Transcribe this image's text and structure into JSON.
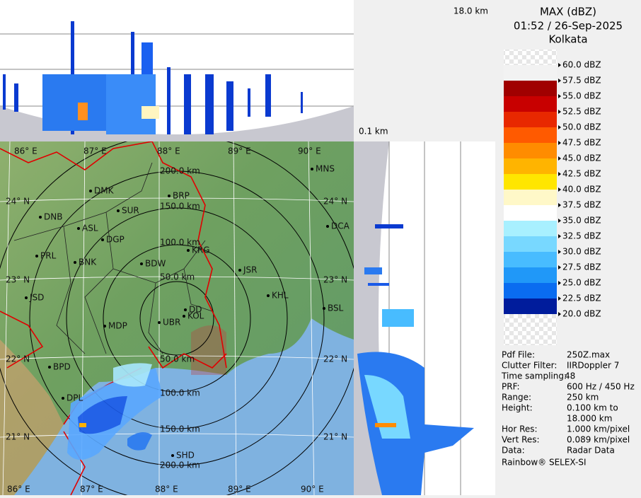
{
  "header": {
    "title": "MAX (dBZ)",
    "time": "01:52 / 26-Sep-2025",
    "station": "Kolkata"
  },
  "height_labels": {
    "top": "18.0 km",
    "bottom": "0.1 km"
  },
  "legend": {
    "entries": [
      {
        "label": "60.0 dBZ",
        "color": "#f2f2f2"
      },
      {
        "label": "57.5 dBZ",
        "color": "#a00000"
      },
      {
        "label": "55.0 dBZ",
        "color": "#c80000"
      },
      {
        "label": "52.5 dBZ",
        "color": "#e82800"
      },
      {
        "label": "50.0 dBZ",
        "color": "#ff5a00"
      },
      {
        "label": "47.5 dBZ",
        "color": "#ff8c00"
      },
      {
        "label": "45.0 dBZ",
        "color": "#ffb400"
      },
      {
        "label": "42.5 dBZ",
        "color": "#ffe600"
      },
      {
        "label": "40.0 dBZ",
        "color": "#fff8c8"
      },
      {
        "label": "37.5 dBZ",
        "color": "#ffffff"
      },
      {
        "label": "35.0 dBZ",
        "color": "#a8f0ff"
      },
      {
        "label": "32.5 dBZ",
        "color": "#78d8ff"
      },
      {
        "label": "30.0 dBZ",
        "color": "#48bcff"
      },
      {
        "label": "27.5 dBZ",
        "color": "#2098f8"
      },
      {
        "label": "25.0 dBZ",
        "color": "#0a6cf0"
      },
      {
        "label": "22.5 dBZ",
        "color": "#0040d8"
      },
      {
        "label": "20.0 dBZ",
        "color": "#001c9c"
      }
    ]
  },
  "info": {
    "rows": [
      [
        "Pdf File:",
        "250Z.max"
      ],
      [
        "Clutter Filter:",
        "IIRDoppler 7"
      ],
      [
        "Time sampling:",
        "48"
      ],
      [
        "PRF:",
        "600 Hz / 450 Hz"
      ],
      [
        "Range:",
        "250 km"
      ],
      [
        "Height:",
        "0.100 km to",
        "18.000 km"
      ],
      [
        "Hor Res:",
        "1.000 km/pixel"
      ],
      [
        "Vert Res:",
        "0.089 km/pixel"
      ],
      [
        "Data:",
        "Radar Data"
      ]
    ],
    "footer": "Rainbow® SELEX-SI"
  },
  "map": {
    "lon_labels": [
      "86° E",
      "87° E",
      "88° E",
      "89° E",
      "90° E"
    ],
    "lat_labels": [
      "24° N",
      "23° N",
      "22° N",
      "21° N"
    ],
    "range_labels": [
      "50.0 km",
      "100.0 km",
      "150.0 km",
      "200.0 km"
    ],
    "places": [
      "MNS",
      "DMK",
      "BRP",
      "DNB",
      "SUR",
      "ASL",
      "DGP",
      "DCA",
      "PRL",
      "KRG",
      "BNK",
      "BDW",
      "JSR",
      "JSD",
      "KHL",
      "DD",
      "KOL",
      "UBR",
      "BSL",
      "MDP",
      "BPD",
      "DPL",
      "SHD"
    ]
  }
}
